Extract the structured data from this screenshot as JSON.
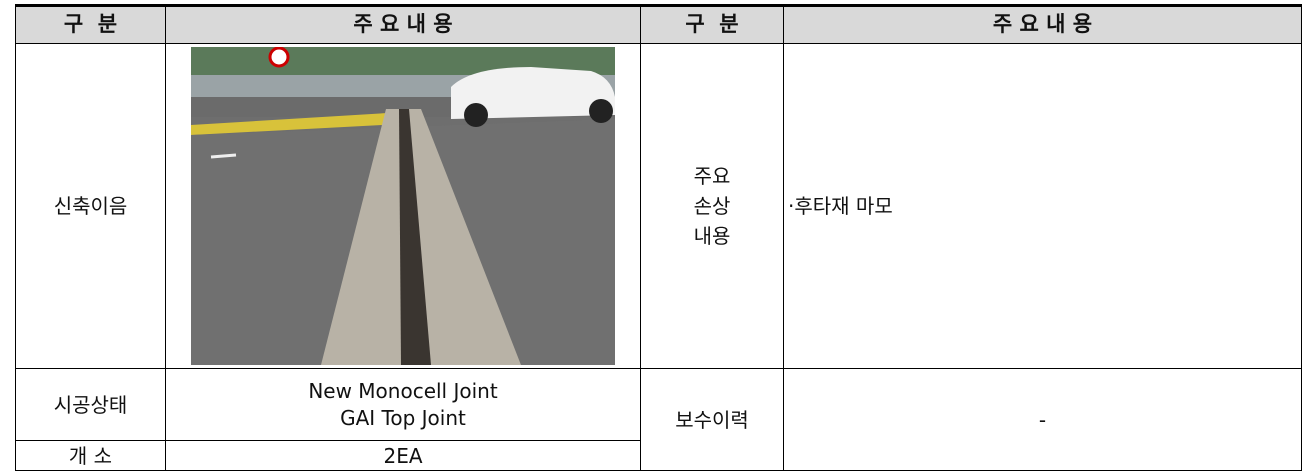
{
  "header": [
    "구  분",
    "주 요 내 용",
    "구  분",
    "주 요 내 용"
  ],
  "joint": {
    "label": "신축이음"
  },
  "damage": {
    "label": [
      "주요",
      "손상",
      "내용"
    ],
    "content": "·후타재 마모"
  },
  "construction": {
    "label": "시공상태",
    "content": [
      "New Monocell Joint",
      "GAI Top Joint"
    ]
  },
  "count": {
    "label": "개 소",
    "content": "2EA"
  },
  "repair": {
    "label": "보수이력",
    "content": "-"
  }
}
